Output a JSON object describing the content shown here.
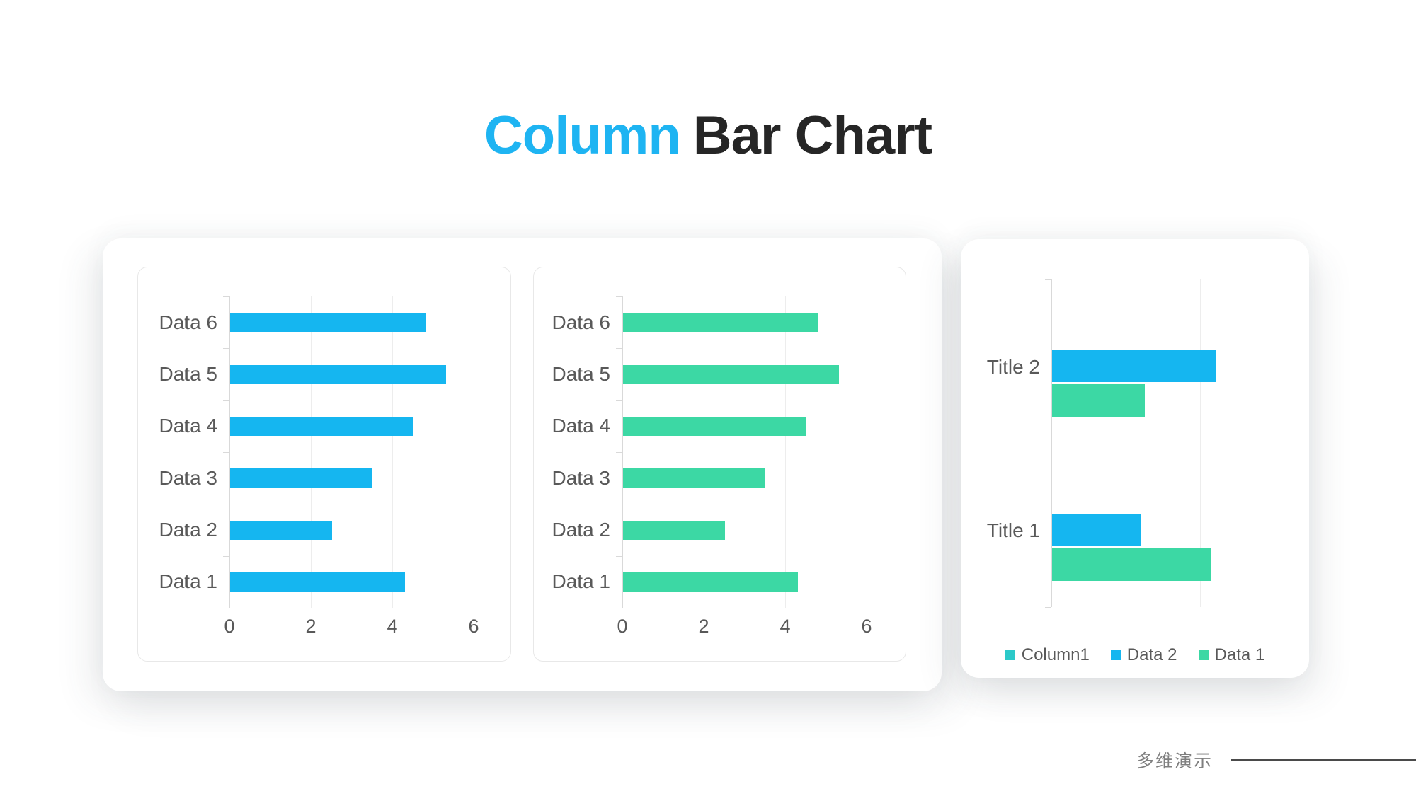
{
  "title": {
    "highlight": "Column",
    "rest": "Bar Chart"
  },
  "footer": {
    "brand": "多维演示"
  },
  "colors": {
    "blue": "#15b6f0",
    "green": "#3cd8a4",
    "teal": "#2cc9c9",
    "title_blue": "#1eb4f2",
    "title_dark": "#262626",
    "label_gray": "#595959",
    "gridline": "#ededed",
    "axis": "#d9d9d9"
  },
  "chart_data": [
    {
      "id": "left",
      "type": "bar",
      "orientation": "horizontal",
      "title": "",
      "categories": [
        "Data 1",
        "Data 2",
        "Data 3",
        "Data 4",
        "Data 5",
        "Data 6"
      ],
      "values": [
        4.3,
        2.5,
        3.5,
        4.5,
        5.3,
        4.8
      ],
      "bar_color": "#15b6f0",
      "xticks": [
        0,
        2,
        4,
        6
      ],
      "xlim": [
        0,
        6.9
      ],
      "grid": true,
      "category_order_on_screen": "top-to-bottom reversed (Data 6 at top)"
    },
    {
      "id": "middle",
      "type": "bar",
      "orientation": "horizontal",
      "title": "",
      "categories": [
        "Data 1",
        "Data 2",
        "Data 3",
        "Data 4",
        "Data 5",
        "Data 6"
      ],
      "values": [
        4.3,
        2.5,
        3.5,
        4.5,
        5.3,
        4.8
      ],
      "bar_color": "#3cd8a4",
      "xticks": [
        0,
        2,
        4,
        6
      ],
      "xlim": [
        0,
        6.9
      ],
      "grid": true,
      "category_order_on_screen": "top-to-bottom reversed (Data 6 at top)"
    },
    {
      "id": "right",
      "type": "grouped_bar",
      "orientation": "horizontal",
      "title": "",
      "categories": [
        "Title 1",
        "Title 2"
      ],
      "series": [
        {
          "name": "Column1",
          "color": "#2cc9c9",
          "values": [
            null,
            null
          ]
        },
        {
          "name": "Data 2",
          "color": "#15b6f0",
          "values": [
            2.4,
            4.4
          ]
        },
        {
          "name": "Data 1",
          "color": "#3cd8a4",
          "values": [
            4.3,
            2.5
          ]
        }
      ],
      "xticks": [
        0,
        2,
        4,
        6
      ],
      "xticks_labeled": false,
      "xlim": [
        0,
        6.6
      ],
      "grid": true,
      "legend_position": "bottom",
      "category_order_on_screen": "top-to-bottom reversed (Title 2 at top)"
    }
  ]
}
